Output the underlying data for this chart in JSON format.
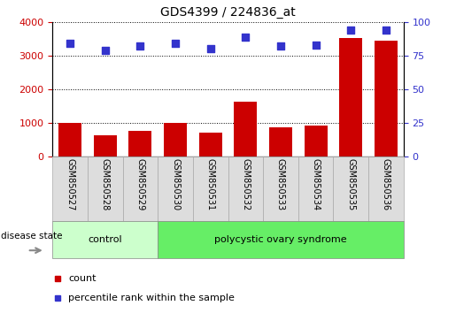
{
  "title": "GDS4399 / 224836_at",
  "samples": [
    "GSM850527",
    "GSM850528",
    "GSM850529",
    "GSM850530",
    "GSM850531",
    "GSM850532",
    "GSM850533",
    "GSM850534",
    "GSM850535",
    "GSM850536"
  ],
  "counts": [
    1000,
    620,
    760,
    1000,
    720,
    1620,
    870,
    920,
    3520,
    3450
  ],
  "percentile_ranks": [
    84,
    79,
    82,
    84,
    80,
    89,
    82,
    83,
    94,
    94
  ],
  "ylim_left": [
    0,
    4000
  ],
  "ylim_right": [
    0,
    100
  ],
  "yticks_left": [
    0,
    1000,
    2000,
    3000,
    4000
  ],
  "yticks_right": [
    0,
    25,
    50,
    75,
    100
  ],
  "bar_color": "#cc0000",
  "dot_color": "#3333cc",
  "groups": [
    {
      "label": "control",
      "start": 0,
      "end": 2,
      "color": "#ccffcc"
    },
    {
      "label": "polycystic ovary syndrome",
      "start": 3,
      "end": 9,
      "color": "#66ee66"
    }
  ],
  "disease_state_label": "disease state",
  "legend_items": [
    {
      "label": "count",
      "color": "#cc0000"
    },
    {
      "label": "percentile rank within the sample",
      "color": "#3333cc"
    }
  ],
  "tick_label_color_left": "#cc0000",
  "tick_label_color_right": "#3333cc",
  "sample_box_color": "#dddddd",
  "title_fontsize": 10
}
